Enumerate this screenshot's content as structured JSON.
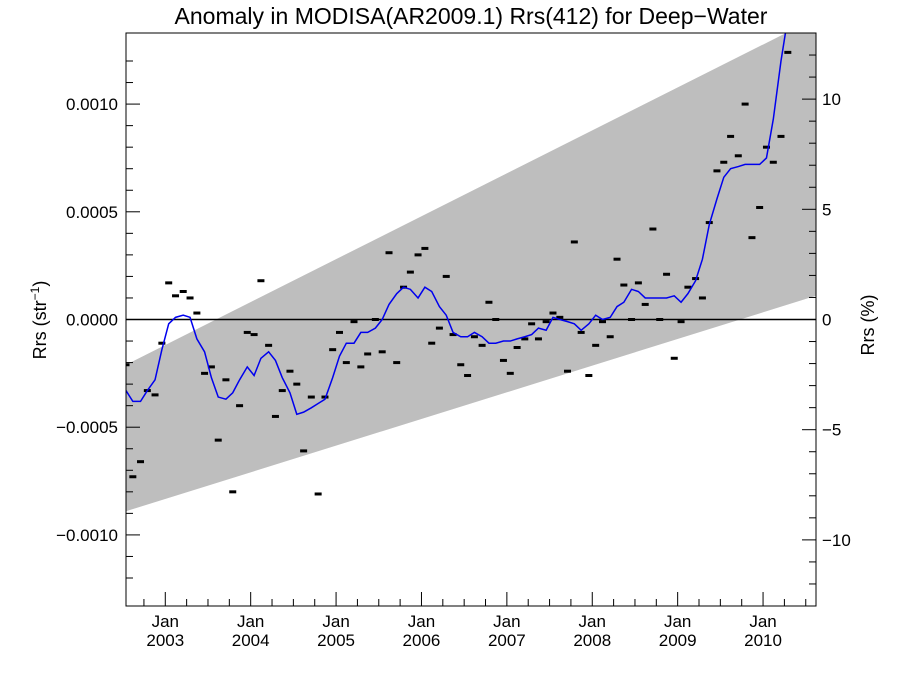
{
  "chart_data": {
    "type": "scatter",
    "title": "Anomaly in MODISA(AR2009.1) Rrs(412) for Deep−Water",
    "ylabel_left_base": "Rrs (str",
    "ylabel_left_sup": "−1",
    "ylabel_left_close": ")",
    "ylabel_right": "Rrs (%)",
    "ylim": [
      -0.00133,
      0.00133
    ],
    "y2lim": [
      -13.0,
      13.0
    ],
    "xlim": [
      2002.54,
      2010.62
    ],
    "yticks": [
      {
        "value": 0.001,
        "label": "0.0010"
      },
      {
        "value": 0.0005,
        "label": "0.0005"
      },
      {
        "value": 0.0,
        "label": "0.0000"
      },
      {
        "value": -0.0005,
        "label": "−0.0005"
      },
      {
        "value": -0.001,
        "label": "−0.0010"
      }
    ],
    "y2ticks": [
      {
        "value": 10,
        "label": "10"
      },
      {
        "value": 5,
        "label": "5"
      },
      {
        "value": 0,
        "label": "0"
      },
      {
        "value": -5,
        "label": "−5"
      },
      {
        "value": -10,
        "label": "−10"
      }
    ],
    "xticks": [
      {
        "value": 2003.0,
        "month": "Jan",
        "year": "2003"
      },
      {
        "value": 2004.0,
        "month": "Jan",
        "year": "2004"
      },
      {
        "value": 2005.0,
        "month": "Jan",
        "year": "2005"
      },
      {
        "value": 2006.0,
        "month": "Jan",
        "year": "2006"
      },
      {
        "value": 2007.0,
        "month": "Jan",
        "year": "2007"
      },
      {
        "value": 2008.0,
        "month": "Jan",
        "year": "2008"
      },
      {
        "value": 2009.0,
        "month": "Jan",
        "year": "2009"
      },
      {
        "value": 2010.0,
        "month": "Jan",
        "year": "2010"
      }
    ],
    "envelope": {
      "color": "#bebebe",
      "upper": [
        [
          2002.54,
          -0.00021
        ],
        [
          2010.62,
          0.0014
        ]
      ],
      "lower": [
        [
          2002.54,
          -0.00089
        ],
        [
          2010.62,
          0.00011
        ]
      ]
    },
    "zero_line": 0.0,
    "points": [
      [
        2002.54,
        -0.00021
      ],
      [
        2002.62,
        -0.00073
      ],
      [
        2002.71,
        -0.00066
      ],
      [
        2002.79,
        -0.00033
      ],
      [
        2002.88,
        -0.00035
      ],
      [
        2002.96,
        -0.00011
      ],
      [
        2003.04,
        0.00017
      ],
      [
        2003.12,
        0.00011
      ],
      [
        2003.21,
        0.00013
      ],
      [
        2003.29,
        0.0001
      ],
      [
        2003.37,
        3e-05
      ],
      [
        2003.46,
        -0.00025
      ],
      [
        2003.54,
        -0.00022
      ],
      [
        2003.62,
        -0.00056
      ],
      [
        2003.71,
        -0.00028
      ],
      [
        2003.79,
        -0.0008
      ],
      [
        2003.87,
        -0.0004
      ],
      [
        2003.96,
        -6e-05
      ],
      [
        2004.04,
        -7e-05
      ],
      [
        2004.12,
        0.00018
      ],
      [
        2004.21,
        -0.00012
      ],
      [
        2004.29,
        -0.00045
      ],
      [
        2004.37,
        -0.00033
      ],
      [
        2004.46,
        -0.00024
      ],
      [
        2004.54,
        -0.0003
      ],
      [
        2004.62,
        -0.00061
      ],
      [
        2004.71,
        -0.00036
      ],
      [
        2004.79,
        -0.00081
      ],
      [
        2004.87,
        -0.00036
      ],
      [
        2004.96,
        -0.00014
      ],
      [
        2005.04,
        -6e-05
      ],
      [
        2005.12,
        -0.0002
      ],
      [
        2005.21,
        -1e-05
      ],
      [
        2005.29,
        -0.00022
      ],
      [
        2005.37,
        -0.00016
      ],
      [
        2005.46,
        0.0
      ],
      [
        2005.54,
        -0.00015
      ],
      [
        2005.62,
        0.00031
      ],
      [
        2005.71,
        -0.0002
      ],
      [
        2005.79,
        0.00015
      ],
      [
        2005.87,
        0.00022
      ],
      [
        2005.96,
        0.0003
      ],
      [
        2006.04,
        0.00033
      ],
      [
        2006.12,
        -0.00011
      ],
      [
        2006.21,
        -4e-05
      ],
      [
        2006.29,
        0.0002
      ],
      [
        2006.37,
        -7e-05
      ],
      [
        2006.46,
        -0.00021
      ],
      [
        2006.54,
        -0.00026
      ],
      [
        2006.62,
        -8e-05
      ],
      [
        2006.71,
        -0.00012
      ],
      [
        2006.79,
        8e-05
      ],
      [
        2006.87,
        0.0
      ],
      [
        2006.96,
        -0.00019
      ],
      [
        2007.04,
        -0.00025
      ],
      [
        2007.12,
        -0.00013
      ],
      [
        2007.21,
        -9e-05
      ],
      [
        2007.29,
        -2e-05
      ],
      [
        2007.37,
        -9e-05
      ],
      [
        2007.46,
        -1e-05
      ],
      [
        2007.54,
        3e-05
      ],
      [
        2007.62,
        1e-05
      ],
      [
        2007.71,
        -0.00024
      ],
      [
        2007.79,
        0.00036
      ],
      [
        2007.87,
        -6e-05
      ],
      [
        2007.96,
        -0.00026
      ],
      [
        2008.04,
        -0.00012
      ],
      [
        2008.12,
        -1e-05
      ],
      [
        2008.21,
        -8e-05
      ],
      [
        2008.29,
        0.00028
      ],
      [
        2008.37,
        0.00016
      ],
      [
        2008.46,
        0.0
      ],
      [
        2008.54,
        0.00017
      ],
      [
        2008.62,
        7e-05
      ],
      [
        2008.71,
        0.00042
      ],
      [
        2008.79,
        0.0
      ],
      [
        2008.87,
        0.00021
      ],
      [
        2008.96,
        -0.00018
      ],
      [
        2009.04,
        -1e-05
      ],
      [
        2009.12,
        0.00015
      ],
      [
        2009.21,
        0.00019
      ],
      [
        2009.29,
        0.0001
      ],
      [
        2009.37,
        0.00045
      ],
      [
        2009.46,
        0.00069
      ],
      [
        2009.54,
        0.00073
      ],
      [
        2009.62,
        0.00085
      ],
      [
        2009.71,
        0.00076
      ],
      [
        2009.79,
        0.001
      ],
      [
        2009.87,
        0.00038
      ],
      [
        2009.96,
        0.00052
      ],
      [
        2010.04,
        0.0008
      ],
      [
        2010.12,
        0.00073
      ],
      [
        2010.21,
        0.00085
      ],
      [
        2010.29,
        0.00124
      ]
    ],
    "smooth_line": {
      "color": "#0000ee",
      "points": [
        [
          2002.54,
          -0.00033
        ],
        [
          2002.62,
          -0.00038
        ],
        [
          2002.71,
          -0.00038
        ],
        [
          2002.79,
          -0.00033
        ],
        [
          2002.88,
          -0.00028
        ],
        [
          2002.96,
          -0.00014
        ],
        [
          2003.04,
          -2e-05
        ],
        [
          2003.12,
          1e-05
        ],
        [
          2003.21,
          2e-05
        ],
        [
          2003.29,
          1e-05
        ],
        [
          2003.37,
          -9e-05
        ],
        [
          2003.46,
          -0.00015
        ],
        [
          2003.54,
          -0.00027
        ],
        [
          2003.62,
          -0.00036
        ],
        [
          2003.71,
          -0.00037
        ],
        [
          2003.79,
          -0.00034
        ],
        [
          2003.87,
          -0.00028
        ],
        [
          2003.96,
          -0.00022
        ],
        [
          2004.04,
          -0.00026
        ],
        [
          2004.12,
          -0.00018
        ],
        [
          2004.21,
          -0.00015
        ],
        [
          2004.29,
          -0.00019
        ],
        [
          2004.37,
          -0.00027
        ],
        [
          2004.46,
          -0.00034
        ],
        [
          2004.54,
          -0.00044
        ],
        [
          2004.62,
          -0.00043
        ],
        [
          2004.71,
          -0.00041
        ],
        [
          2004.79,
          -0.00039
        ],
        [
          2004.87,
          -0.00037
        ],
        [
          2004.96,
          -0.00027
        ],
        [
          2005.04,
          -0.00017
        ],
        [
          2005.12,
          -0.00011
        ],
        [
          2005.21,
          -0.00011
        ],
        [
          2005.29,
          -6e-05
        ],
        [
          2005.37,
          -6e-05
        ],
        [
          2005.46,
          -4e-05
        ],
        [
          2005.54,
          0.0
        ],
        [
          2005.62,
          7e-05
        ],
        [
          2005.71,
          0.00012
        ],
        [
          2005.79,
          0.00015
        ],
        [
          2005.87,
          0.00014
        ],
        [
          2005.96,
          0.0001
        ],
        [
          2006.04,
          0.00015
        ],
        [
          2006.12,
          0.00013
        ],
        [
          2006.21,
          6e-05
        ],
        [
          2006.29,
          2e-05
        ],
        [
          2006.37,
          -6e-05
        ],
        [
          2006.46,
          -8e-05
        ],
        [
          2006.54,
          -8e-05
        ],
        [
          2006.62,
          -6e-05
        ],
        [
          2006.71,
          -8e-05
        ],
        [
          2006.79,
          -0.00011
        ],
        [
          2006.87,
          -0.00011
        ],
        [
          2006.96,
          -0.0001
        ],
        [
          2007.04,
          -0.0001
        ],
        [
          2007.12,
          -9e-05
        ],
        [
          2007.21,
          -8e-05
        ],
        [
          2007.29,
          -7e-05
        ],
        [
          2007.37,
          -4e-05
        ],
        [
          2007.46,
          -5e-05
        ],
        [
          2007.54,
          1e-05
        ],
        [
          2007.62,
          0.0
        ],
        [
          2007.71,
          -1e-05
        ],
        [
          2007.79,
          -2e-05
        ],
        [
          2007.87,
          -5e-05
        ],
        [
          2007.96,
          -2e-05
        ],
        [
          2008.04,
          2e-05
        ],
        [
          2008.12,
          0.0
        ],
        [
          2008.21,
          1e-05
        ],
        [
          2008.29,
          6e-05
        ],
        [
          2008.37,
          8e-05
        ],
        [
          2008.46,
          0.00014
        ],
        [
          2008.54,
          0.00013
        ],
        [
          2008.62,
          0.0001
        ],
        [
          2008.71,
          0.0001
        ],
        [
          2008.79,
          0.0001
        ],
        [
          2008.87,
          0.0001
        ],
        [
          2008.96,
          0.00011
        ],
        [
          2009.04,
          8e-05
        ],
        [
          2009.12,
          0.00012
        ],
        [
          2009.21,
          0.00018
        ],
        [
          2009.29,
          0.00028
        ],
        [
          2009.37,
          0.00044
        ],
        [
          2009.46,
          0.00056
        ],
        [
          2009.54,
          0.00066
        ],
        [
          2009.62,
          0.0007
        ],
        [
          2009.71,
          0.00071
        ],
        [
          2009.79,
          0.00072
        ],
        [
          2009.87,
          0.00072
        ],
        [
          2009.96,
          0.00072
        ],
        [
          2010.04,
          0.00075
        ],
        [
          2010.12,
          0.00093
        ],
        [
          2010.21,
          0.0012
        ],
        [
          2010.29,
          0.0014
        ]
      ]
    }
  }
}
